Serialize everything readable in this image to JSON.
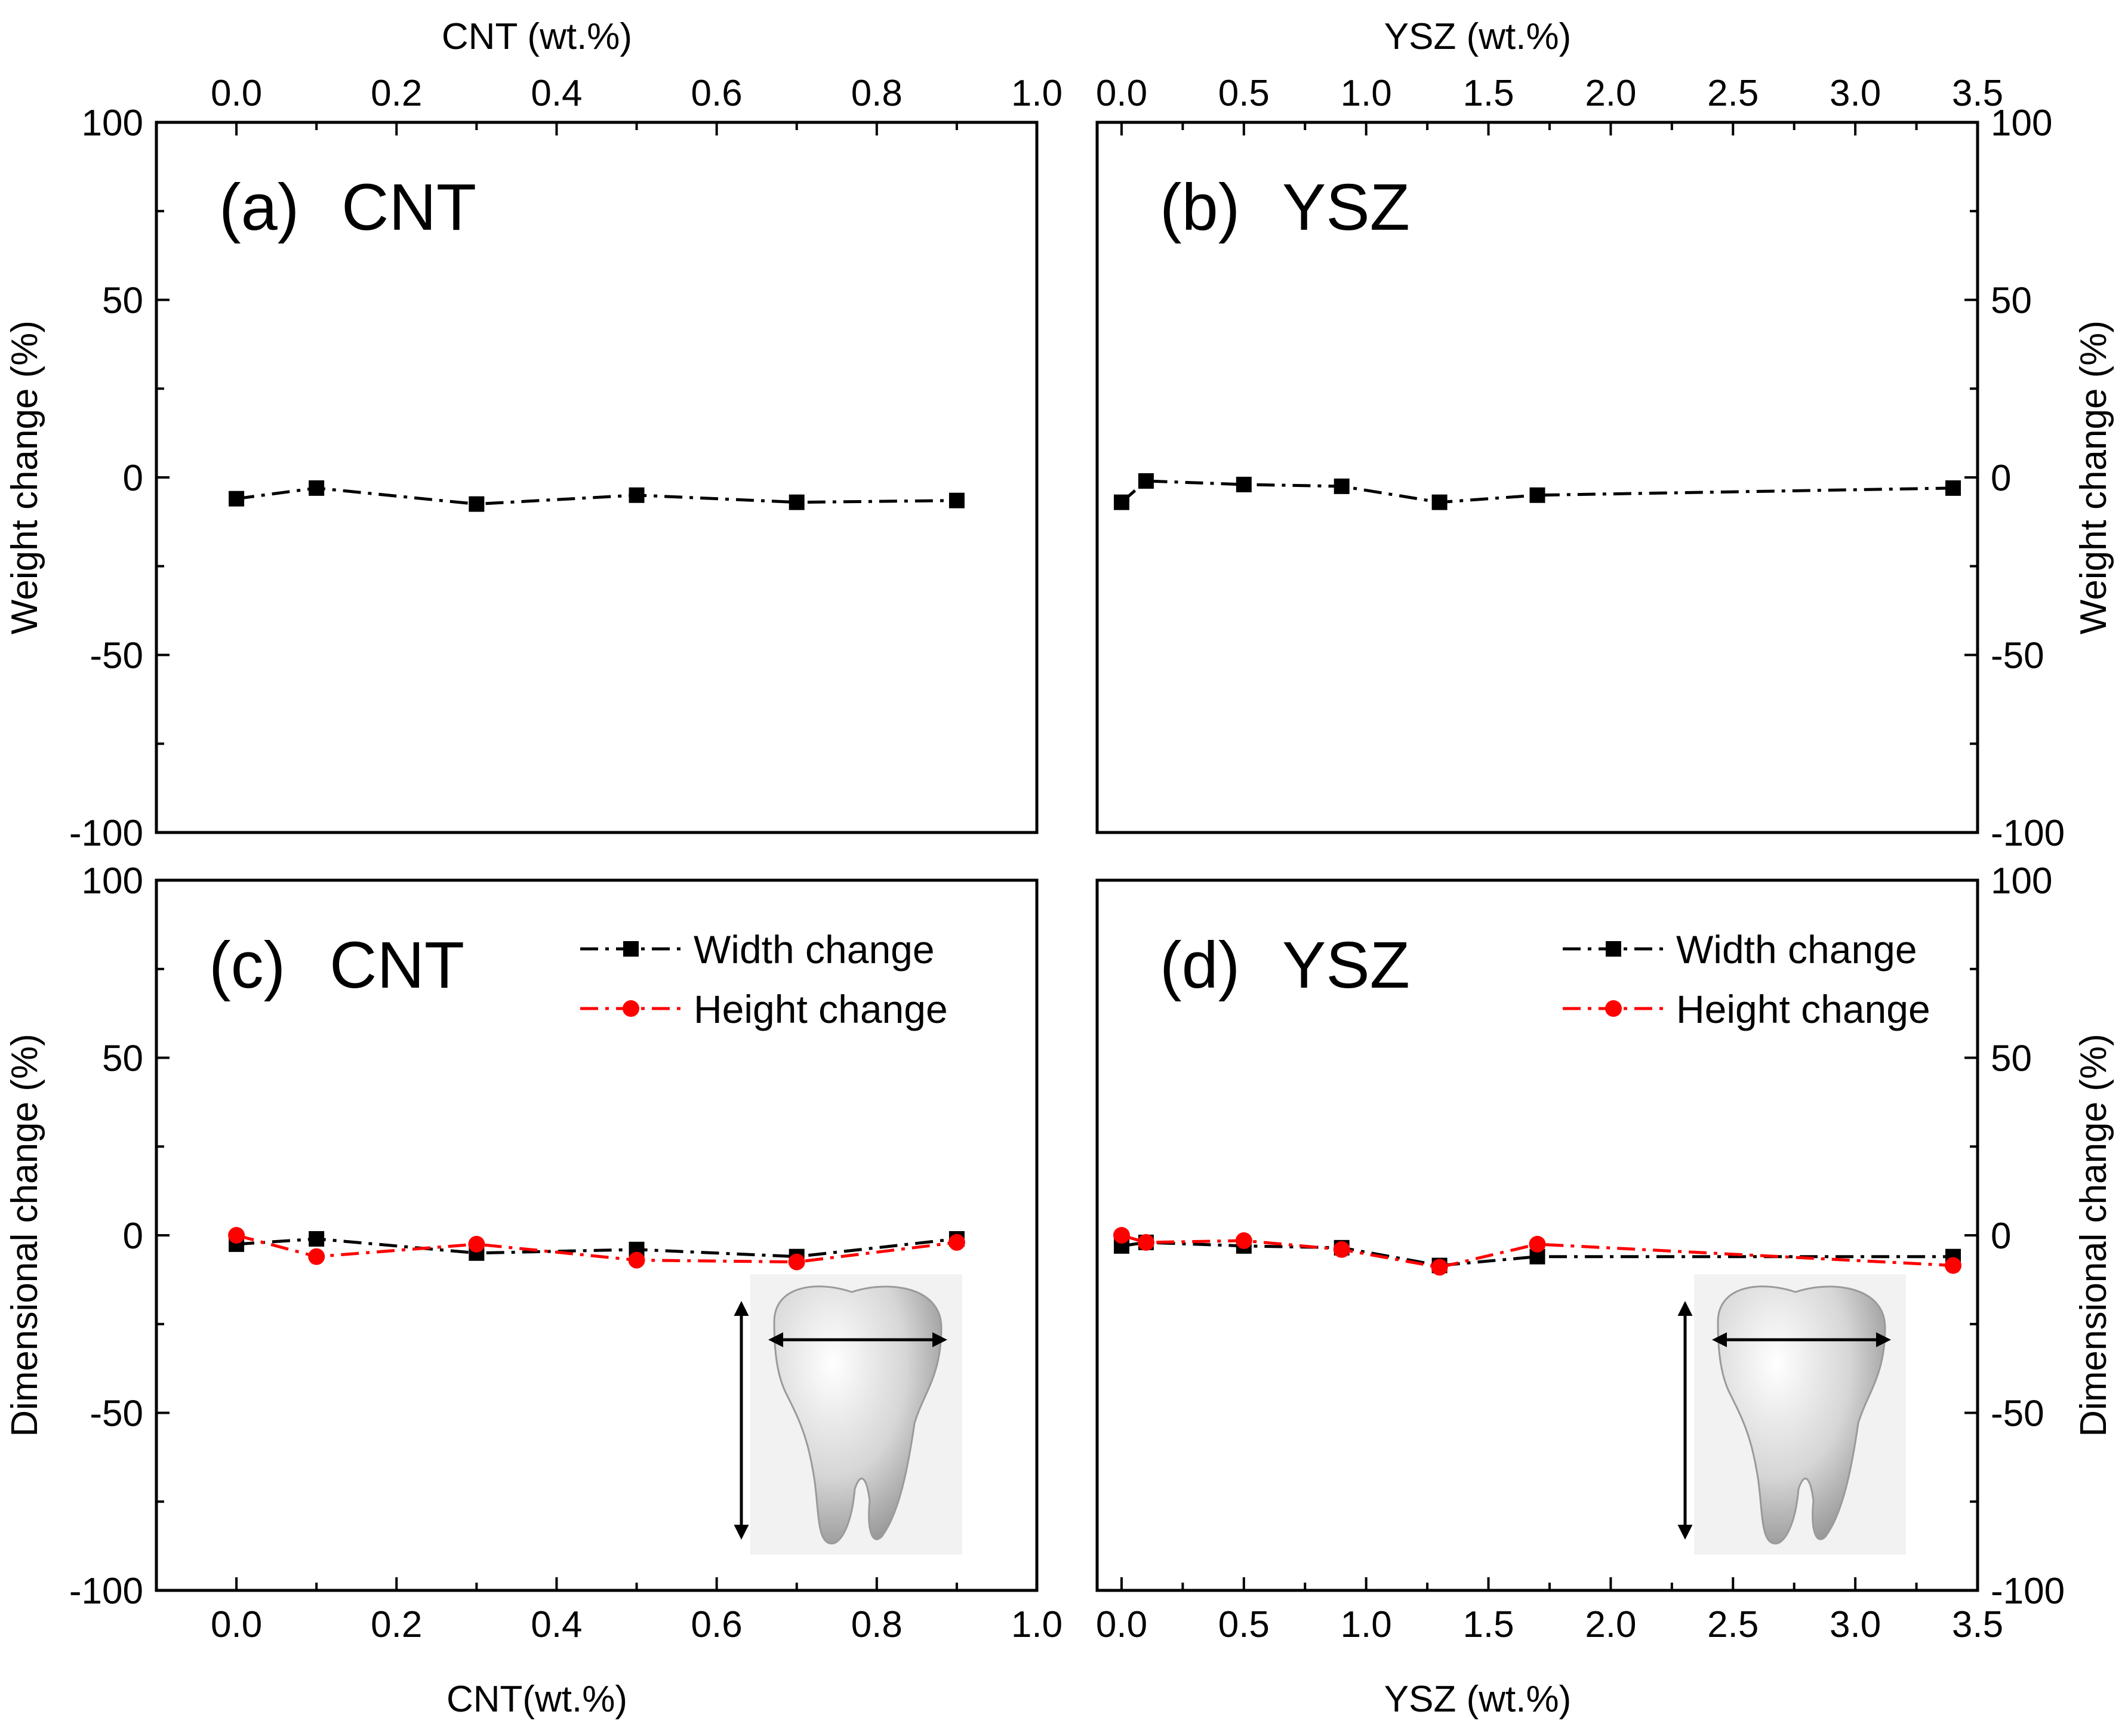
{
  "chart_data": [
    {
      "id": "a",
      "type": "line",
      "panel_label": "(a)",
      "title": "CNT",
      "xlabel_top": "CNT (wt.%)",
      "xlabel_bottom": "",
      "ylabel": "Weight change (%)",
      "ylabel_side": "left",
      "xlim": [
        -0.1,
        1.0
      ],
      "ylim": [
        -100,
        100
      ],
      "xticks": [
        "0.0",
        "0.2",
        "0.4",
        "0.6",
        "0.8",
        "1.0"
      ],
      "xtick_values": [
        0.0,
        0.2,
        0.4,
        0.6,
        0.8,
        1.0
      ],
      "yticks": [
        "-100",
        "-50",
        "0",
        "50",
        "100"
      ],
      "ytick_values": [
        -100,
        -50,
        0,
        50,
        100
      ],
      "x_axes": [
        "top"
      ],
      "series": [
        {
          "name": "Weight change",
          "color": "#000000",
          "marker": "square",
          "x": [
            0.0,
            0.1,
            0.3,
            0.5,
            0.7,
            0.9
          ],
          "y": [
            -6,
            -3,
            -7.5,
            -5,
            -7,
            -6.5
          ]
        }
      ]
    },
    {
      "id": "b",
      "type": "line",
      "panel_label": "(b)",
      "title": "YSZ",
      "xlabel_top": "YSZ (wt.%)",
      "xlabel_bottom": "",
      "ylabel": "Weight change (%)",
      "ylabel_side": "right",
      "xlim": [
        -0.1,
        3.5
      ],
      "ylim": [
        -100,
        100
      ],
      "xticks": [
        "0.0",
        "0.5",
        "1.0",
        "1.5",
        "2.0",
        "2.5",
        "3.0",
        "3.5"
      ],
      "xtick_values": [
        0.0,
        0.5,
        1.0,
        1.5,
        2.0,
        2.5,
        3.0,
        3.5
      ],
      "yticks": [
        "-100",
        "-50",
        "0",
        "50",
        "100"
      ],
      "ytick_values": [
        -100,
        -50,
        0,
        50,
        100
      ],
      "x_axes": [
        "top"
      ],
      "series": [
        {
          "name": "Weight change",
          "color": "#000000",
          "marker": "square",
          "x": [
            0.0,
            0.1,
            0.5,
            0.9,
            1.3,
            1.7,
            3.4
          ],
          "y": [
            -7,
            -1,
            -2,
            -2.5,
            -7,
            -5,
            -3
          ]
        }
      ]
    },
    {
      "id": "c",
      "type": "line",
      "panel_label": "(c)",
      "title": "CNT",
      "xlabel_top": "",
      "xlabel_bottom": "CNT(wt.%)",
      "ylabel": "Dimensional change (%)",
      "ylabel_side": "left",
      "xlim": [
        -0.1,
        1.0
      ],
      "ylim": [
        -100,
        100
      ],
      "xticks": [
        "0.0",
        "0.2",
        "0.4",
        "0.6",
        "0.8",
        "1.0"
      ],
      "xtick_values": [
        0.0,
        0.2,
        0.4,
        0.6,
        0.8,
        1.0
      ],
      "yticks": [
        "-100",
        "-50",
        "0",
        "50",
        "100"
      ],
      "ytick_values": [
        -100,
        -50,
        0,
        50,
        100
      ],
      "x_axes": [
        "bottom"
      ],
      "series": [
        {
          "name": "Width change",
          "color": "#000000",
          "marker": "square",
          "x": [
            0.0,
            0.1,
            0.3,
            0.5,
            0.7,
            0.9
          ],
          "y": [
            -2.5,
            -1,
            -5,
            -4,
            -6,
            -1
          ]
        },
        {
          "name": "Height change",
          "color": "#ff0000",
          "marker": "circle",
          "x": [
            0.0,
            0.1,
            0.3,
            0.5,
            0.7,
            0.9
          ],
          "y": [
            0,
            -6,
            -2.5,
            -7,
            -7.5,
            -2
          ]
        }
      ],
      "legend_position": "top-right"
    },
    {
      "id": "d",
      "type": "line",
      "panel_label": "(d)",
      "title": "YSZ",
      "xlabel_top": "",
      "xlabel_bottom": "YSZ (wt.%)",
      "ylabel": "Dimensional change (%)",
      "ylabel_side": "right",
      "xlim": [
        -0.1,
        3.5
      ],
      "ylim": [
        -100,
        100
      ],
      "xticks": [
        "0.0",
        "0.5",
        "1.0",
        "1.5",
        "2.0",
        "2.5",
        "3.0",
        "3.5"
      ],
      "xtick_values": [
        0.0,
        0.5,
        1.0,
        1.5,
        2.0,
        2.5,
        3.0,
        3.5
      ],
      "yticks": [
        "-100",
        "-50",
        "0",
        "50",
        "100"
      ],
      "ytick_values": [
        -100,
        -50,
        0,
        50,
        100
      ],
      "x_axes": [
        "bottom"
      ],
      "series": [
        {
          "name": "Width change",
          "color": "#000000",
          "marker": "square",
          "x": [
            0.0,
            0.1,
            0.5,
            0.9,
            1.3,
            1.7,
            3.4
          ],
          "y": [
            -3,
            -2,
            -3,
            -3.5,
            -8.5,
            -6,
            -6
          ]
        },
        {
          "name": "Height change",
          "color": "#ff0000",
          "marker": "circle",
          "x": [
            0.0,
            0.1,
            0.5,
            0.9,
            1.3,
            1.7,
            3.4
          ],
          "y": [
            0,
            -2,
            -1.5,
            -4,
            -9,
            -2.5,
            -8.5
          ]
        }
      ],
      "legend_position": "top-right"
    }
  ]
}
